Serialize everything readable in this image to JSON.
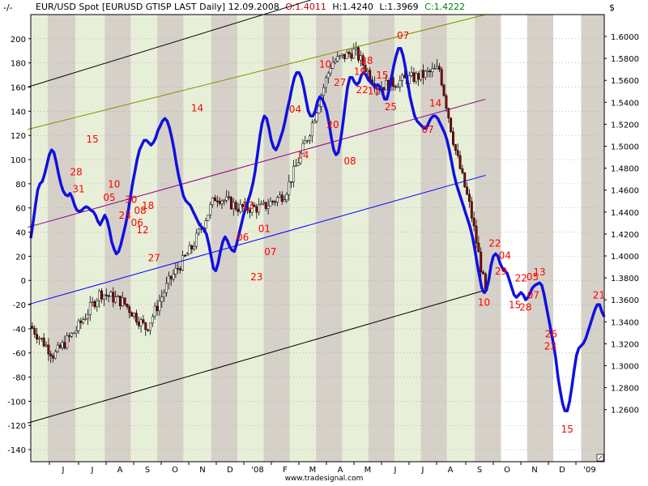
{
  "header": {
    "corner": "-/-",
    "symbol": "EUR/USD Spot [EURUSD GTISP LAST Daily]",
    "date": "12.09.2008",
    "open": "O:1.4011",
    "high": "H:1.4240",
    "low": "L:1.3969",
    "close": "C:1.4222",
    "currency": "$"
  },
  "footer": "www.tradesignal.com",
  "colors": {
    "oscillator": "#1010e0",
    "cycle_label": "#ff0000",
    "band_gray": "#d6d1c8",
    "band_green": "#e8efd8",
    "channel_black": "#000000",
    "channel_olive": "#8a8a00",
    "channel_purple": "#8b008b",
    "channel_blue": "#0000ff"
  },
  "chart_data": {
    "type": "line",
    "left_axis": {
      "min": -150,
      "max": 220,
      "ticks": [
        200,
        180,
        160,
        140,
        120,
        100,
        80,
        60,
        40,
        20,
        0,
        -20,
        -40,
        -60,
        -80,
        -100,
        -120,
        -140
      ]
    },
    "right_axis": {
      "ticks": [
        "1.6000",
        "1.5800",
        "1.5600",
        "1.5400",
        "1.5200",
        "1.5000",
        "1.4800",
        "1.4600",
        "1.4400",
        "1.4200",
        "1.4000",
        "1.3800",
        "1.3600",
        "1.3400",
        "1.3200",
        "1.3000",
        "1.2800",
        "1.2600"
      ]
    },
    "x_labels": [
      "J",
      "J",
      "A",
      "S",
      "O",
      "N",
      "D",
      "'08",
      "F",
      "M",
      "A",
      "M",
      "J",
      "J",
      "A",
      "S",
      "O",
      "N",
      "D",
      "'09"
    ],
    "oscillator": {
      "name": "cycle oscillator",
      "points": [
        [
          0,
          35
        ],
        [
          3,
          48
        ],
        [
          6,
          62
        ],
        [
          9,
          75
        ],
        [
          12,
          80
        ],
        [
          15,
          82
        ],
        [
          18,
          88
        ],
        [
          21,
          96
        ],
        [
          24,
          104
        ],
        [
          27,
          108
        ],
        [
          30,
          106
        ],
        [
          33,
          98
        ],
        [
          36,
          88
        ],
        [
          39,
          80
        ],
        [
          42,
          74
        ],
        [
          45,
          71
        ],
        [
          48,
          70
        ],
        [
          51,
          72
        ],
        [
          54,
          68
        ],
        [
          57,
          62
        ],
        [
          60,
          58
        ],
        [
          63,
          57
        ],
        [
          66,
          58
        ],
        [
          69,
          60
        ],
        [
          72,
          61
        ],
        [
          75,
          60
        ],
        [
          78,
          58
        ],
        [
          81,
          57
        ],
        [
          84,
          54
        ],
        [
          87,
          49
        ],
        [
          90,
          46
        ],
        [
          93,
          50
        ],
        [
          96,
          54
        ],
        [
          99,
          50
        ],
        [
          102,
          42
        ],
        [
          105,
          32
        ],
        [
          108,
          26
        ],
        [
          111,
          22
        ],
        [
          114,
          24
        ],
        [
          117,
          30
        ],
        [
          120,
          38
        ],
        [
          123,
          46
        ],
        [
          126,
          56
        ],
        [
          129,
          68
        ],
        [
          132,
          80
        ],
        [
          135,
          90
        ],
        [
          138,
          100
        ],
        [
          141,
          108
        ],
        [
          144,
          112
        ],
        [
          147,
          116
        ],
        [
          150,
          116
        ],
        [
          153,
          114
        ],
        [
          156,
          112
        ],
        [
          159,
          114
        ],
        [
          162,
          118
        ],
        [
          165,
          124
        ],
        [
          168,
          128
        ],
        [
          171,
          132
        ],
        [
          174,
          134
        ],
        [
          177,
          132
        ],
        [
          180,
          126
        ],
        [
          183,
          118
        ],
        [
          186,
          108
        ],
        [
          189,
          96
        ],
        [
          192,
          86
        ],
        [
          195,
          78
        ],
        [
          198,
          70
        ],
        [
          201,
          66
        ],
        [
          204,
          64
        ],
        [
          207,
          62
        ],
        [
          210,
          58
        ],
        [
          213,
          54
        ],
        [
          216,
          50
        ],
        [
          219,
          46
        ],
        [
          222,
          44
        ],
        [
          225,
          42
        ],
        [
          228,
          38
        ],
        [
          231,
          30
        ],
        [
          234,
          20
        ],
        [
          237,
          10
        ],
        [
          240,
          8
        ],
        [
          243,
          14
        ],
        [
          246,
          24
        ],
        [
          249,
          32
        ],
        [
          252,
          36
        ],
        [
          255,
          33
        ],
        [
          258,
          28
        ],
        [
          261,
          25
        ],
        [
          264,
          24
        ],
        [
          267,
          30
        ],
        [
          270,
          38
        ],
        [
          273,
          46
        ],
        [
          276,
          54
        ],
        [
          279,
          60
        ],
        [
          282,
          66
        ],
        [
          285,
          72
        ],
        [
          288,
          80
        ],
        [
          291,
          90
        ],
        [
          294,
          104
        ],
        [
          297,
          118
        ],
        [
          300,
          130
        ],
        [
          303,
          136
        ],
        [
          306,
          134
        ],
        [
          309,
          126
        ],
        [
          312,
          116
        ],
        [
          315,
          110
        ],
        [
          318,
          108
        ],
        [
          321,
          112
        ],
        [
          324,
          118
        ],
        [
          327,
          124
        ],
        [
          330,
          132
        ],
        [
          333,
          142
        ],
        [
          336,
          150
        ],
        [
          339,
          160
        ],
        [
          342,
          168
        ],
        [
          345,
          172
        ],
        [
          348,
          172
        ],
        [
          351,
          168
        ],
        [
          354,
          160
        ],
        [
          357,
          150
        ],
        [
          360,
          140
        ],
        [
          363,
          136
        ],
        [
          366,
          136
        ],
        [
          369,
          140
        ],
        [
          372,
          148
        ],
        [
          375,
          152
        ],
        [
          378,
          150
        ],
        [
          381,
          146
        ],
        [
          384,
          140
        ],
        [
          387,
          130
        ],
        [
          390,
          118
        ],
        [
          393,
          108
        ],
        [
          396,
          104
        ],
        [
          399,
          106
        ],
        [
          402,
          116
        ],
        [
          405,
          130
        ],
        [
          408,
          146
        ],
        [
          411,
          160
        ],
        [
          414,
          168
        ],
        [
          417,
          168
        ],
        [
          420,
          164
        ],
        [
          423,
          162
        ],
        [
          426,
          164
        ],
        [
          429,
          170
        ],
        [
          432,
          172
        ],
        [
          435,
          170
        ],
        [
          438,
          166
        ],
        [
          441,
          164
        ],
        [
          444,
          162
        ],
        [
          447,
          160
        ],
        [
          450,
          162
        ],
        [
          453,
          160
        ],
        [
          456,
          156
        ],
        [
          459,
          150
        ],
        [
          462,
          150
        ],
        [
          465,
          158
        ],
        [
          468,
          168
        ],
        [
          471,
          178
        ],
        [
          474,
          186
        ],
        [
          477,
          192
        ],
        [
          480,
          192
        ],
        [
          483,
          186
        ],
        [
          486,
          176
        ],
        [
          489,
          164
        ],
        [
          492,
          152
        ],
        [
          495,
          144
        ],
        [
          498,
          136
        ],
        [
          501,
          132
        ],
        [
          504,
          130
        ],
        [
          507,
          128
        ],
        [
          510,
          126
        ],
        [
          513,
          126
        ],
        [
          516,
          130
        ],
        [
          519,
          134
        ],
        [
          522,
          136
        ],
        [
          525,
          136
        ],
        [
          528,
          134
        ],
        [
          531,
          130
        ],
        [
          534,
          126
        ],
        [
          537,
          122
        ],
        [
          540,
          116
        ],
        [
          543,
          108
        ],
        [
          546,
          98
        ],
        [
          549,
          88
        ],
        [
          552,
          80
        ],
        [
          555,
          74
        ],
        [
          558,
          68
        ],
        [
          561,
          62
        ],
        [
          564,
          56
        ],
        [
          567,
          50
        ],
        [
          570,
          44
        ],
        [
          573,
          36
        ],
        [
          576,
          26
        ],
        [
          579,
          14
        ],
        [
          582,
          4
        ],
        [
          585,
          -6
        ],
        [
          588,
          -10
        ],
        [
          591,
          -8
        ],
        [
          594,
          0
        ],
        [
          597,
          12
        ],
        [
          600,
          20
        ],
        [
          603,
          22
        ],
        [
          606,
          20
        ],
        [
          609,
          14
        ],
        [
          612,
          10
        ],
        [
          615,
          8
        ],
        [
          618,
          6
        ],
        [
          621,
          0
        ],
        [
          624,
          -6
        ],
        [
          627,
          -12
        ],
        [
          630,
          -14
        ],
        [
          633,
          -12
        ],
        [
          636,
          -10
        ],
        [
          639,
          -12
        ],
        [
          642,
          -16
        ],
        [
          645,
          -14
        ],
        [
          648,
          -10
        ],
        [
          651,
          -6
        ],
        [
          654,
          -4
        ],
        [
          657,
          -3
        ],
        [
          660,
          -2
        ],
        [
          663,
          -4
        ],
        [
          666,
          -12
        ],
        [
          669,
          -22
        ],
        [
          672,
          -32
        ],
        [
          675,
          -42
        ],
        [
          678,
          -52
        ],
        [
          681,
          -64
        ],
        [
          684,
          -80
        ],
        [
          687,
          -92
        ],
        [
          690,
          -102
        ],
        [
          693,
          -108
        ],
        [
          696,
          -108
        ],
        [
          699,
          -100
        ],
        [
          702,
          -88
        ],
        [
          705,
          -74
        ],
        [
          708,
          -62
        ],
        [
          711,
          -56
        ],
        [
          714,
          -54
        ],
        [
          717,
          -52
        ],
        [
          720,
          -48
        ],
        [
          723,
          -42
        ],
        [
          726,
          -36
        ],
        [
          729,
          -30
        ],
        [
          732,
          -24
        ],
        [
          735,
          -20
        ],
        [
          738,
          -20
        ],
        [
          741,
          -26
        ],
        [
          744,
          -30
        ]
      ]
    },
    "channels": [
      {
        "name": "upper_black",
        "color": "#000000",
        "from": [
          -4,
          160
        ],
        "to": [
          363,
          232
        ]
      },
      {
        "name": "upper_olive",
        "color": "#8a8a00",
        "from": [
          -4,
          125
        ],
        "to": [
          590,
          220
        ]
      },
      {
        "name": "middle_purple",
        "color": "#8b008b",
        "from": [
          -4,
          44
        ],
        "to": [
          590,
          150
        ]
      },
      {
        "name": "middle_blue",
        "color": "#0000ff",
        "from": [
          -4,
          -20
        ],
        "to": [
          590,
          87
        ]
      },
      {
        "name": "lower_black",
        "color": "#000000",
        "from": [
          -4,
          -118
        ],
        "to": [
          590,
          -8
        ]
      }
    ],
    "cycle_labels": [
      {
        "text": "15",
        "x": 80,
        "y": 114
      },
      {
        "text": "28",
        "x": 59,
        "y": 87
      },
      {
        "text": "31",
        "x": 62,
        "y": 73
      },
      {
        "text": "10",
        "x": 108,
        "y": 77
      },
      {
        "text": "05",
        "x": 102,
        "y": 66
      },
      {
        "text": "30",
        "x": 130,
        "y": 64
      },
      {
        "text": "23",
        "x": 122,
        "y": 51
      },
      {
        "text": "08",
        "x": 142,
        "y": 55
      },
      {
        "text": "06",
        "x": 138,
        "y": 45
      },
      {
        "text": "18",
        "x": 152,
        "y": 59
      },
      {
        "text": "12",
        "x": 145,
        "y": 39
      },
      {
        "text": "27",
        "x": 160,
        "y": 16
      },
      {
        "text": "14",
        "x": 216,
        "y": 140
      },
      {
        "text": "13",
        "x": 282,
        "y": 59
      },
      {
        "text": "06",
        "x": 275,
        "y": 33
      },
      {
        "text": "01",
        "x": 303,
        "y": 40
      },
      {
        "text": "07",
        "x": 311,
        "y": 21
      },
      {
        "text": "23",
        "x": 293,
        "y": 0
      },
      {
        "text": "04",
        "x": 343,
        "y": 139
      },
      {
        "text": "14",
        "x": 353,
        "y": 101
      },
      {
        "text": "10",
        "x": 382,
        "y": 176
      },
      {
        "text": "20",
        "x": 392,
        "y": 126
      },
      {
        "text": "08",
        "x": 414,
        "y": 96
      },
      {
        "text": "27",
        "x": 401,
        "y": 161
      },
      {
        "text": "19",
        "x": 427,
        "y": 170
      },
      {
        "text": "28",
        "x": 436,
        "y": 179
      },
      {
        "text": "22",
        "x": 430,
        "y": 155
      },
      {
        "text": "11",
        "x": 445,
        "y": 154
      },
      {
        "text": "15",
        "x": 456,
        "y": 167
      },
      {
        "text": "25",
        "x": 467,
        "y": 141
      },
      {
        "text": "07",
        "x": 483,
        "y": 200
      },
      {
        "text": "07",
        "x": 515,
        "y": 122
      },
      {
        "text": "14",
        "x": 525,
        "y": 144
      },
      {
        "text": "10",
        "x": 588,
        "y": -21
      },
      {
        "text": "22",
        "x": 602,
        "y": 28
      },
      {
        "text": "29",
        "x": 610,
        "y": 5
      },
      {
        "text": "04",
        "x": 615,
        "y": 18
      },
      {
        "text": "22",
        "x": 636,
        "y": -1
      },
      {
        "text": "15",
        "x": 628,
        "y": -23
      },
      {
        "text": "28",
        "x": 642,
        "y": -25
      },
      {
        "text": "05",
        "x": 651,
        "y": 0
      },
      {
        "text": "07",
        "x": 652,
        "y": -15
      },
      {
        "text": "13",
        "x": 660,
        "y": 4
      },
      {
        "text": "26",
        "x": 675,
        "y": -47
      },
      {
        "text": "23",
        "x": 674,
        "y": -57
      },
      {
        "text": "15",
        "x": 696,
        "y": -126
      },
      {
        "text": "21",
        "x": 737,
        "y": -15
      }
    ]
  }
}
